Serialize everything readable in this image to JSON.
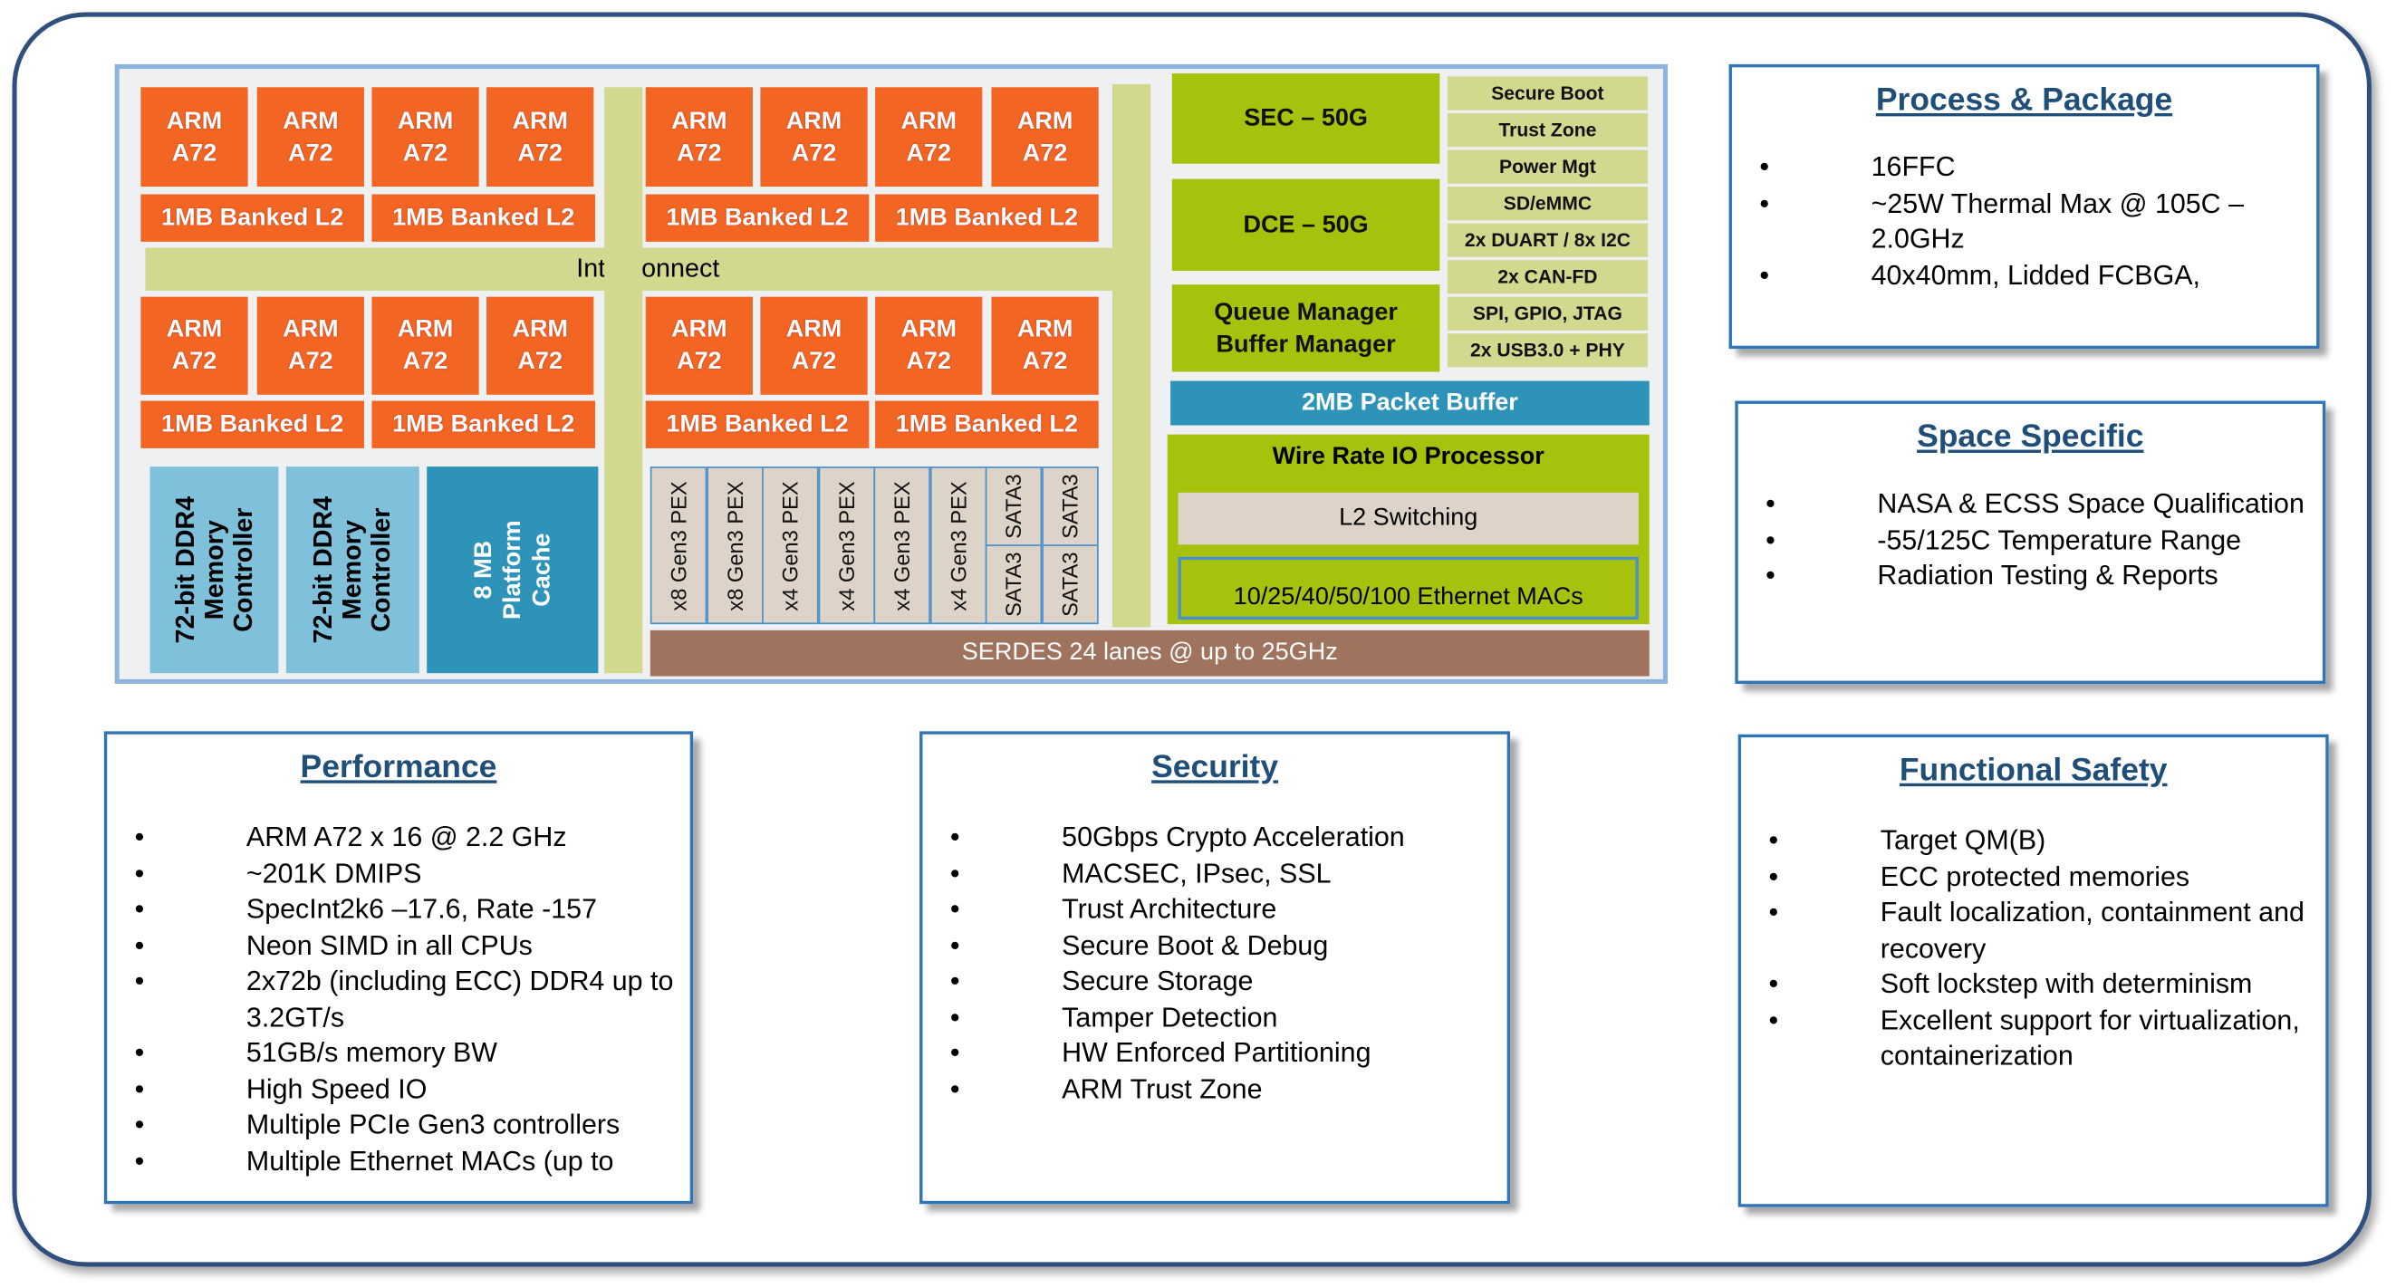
{
  "diagram": {
    "cores": [
      "ARM\nA72",
      "ARM\nA72",
      "ARM\nA72",
      "ARM\nA72"
    ],
    "core_label_line1": "ARM",
    "core_label_line2": "A72",
    "l2_label": "1MB Banked L2",
    "interconnect": "Interconnect",
    "ddr_line1": "72-bit DDR4",
    "ddr_line2": "Memory",
    "ddr_line3": "Controller",
    "cache_line1": "8 MB",
    "cache_line2": "Platform",
    "cache_line3": "Cache",
    "sec": "SEC – 50G",
    "dce": "DCE – 50G",
    "qm_line1": "Queue Manager",
    "qm_line2": "Buffer Manager",
    "peripherals": [
      "Secure Boot",
      "Trust Zone",
      "Power Mgt",
      "SD/eMMC",
      "2x DUART / 8x I2C",
      "2x CAN-FD",
      "SPI, GPIO, JTAG",
      "2x USB3.0 + PHY"
    ],
    "packet_buffer": "2MB Packet Buffer",
    "wire_rate": "Wire Rate IO Processor",
    "l2_switching": "L2 Switching",
    "ethernet_macs": "10/25/40/50/100 Ethernet MACs",
    "pex": [
      "x8 Gen3 PEX",
      "x8 Gen3 PEX",
      "x4 Gen3 PEX",
      "x4 Gen3 PEX",
      "x4 Gen3 PEX",
      "x4 Gen3 PEX"
    ],
    "sata": [
      "SATA3",
      "SATA3",
      "SATA3",
      "SATA3"
    ],
    "serdes": "SERDES 24 lanes @ up to 25GHz",
    "colors": {
      "cpu": "#f26522",
      "interconnect": "#d2d98f",
      "memory": "#7fc1da",
      "cache": "#2e93b8",
      "accel": "#a6c20c",
      "serdes": "#a0735e",
      "io": "#ddd3c8"
    }
  },
  "panels": {
    "process": {
      "title": "Process & Package",
      "items": [
        "16FFC",
        "~25W Thermal Max @ 105C – 2.0GHz",
        "40x40mm, Lidded FCBGA,"
      ]
    },
    "space": {
      "title": "Space Specific",
      "items": [
        "NASA & ECSS Space Qualification",
        "-55/125C Temperature  Range",
        "Radiation Testing & Reports"
      ]
    },
    "performance": {
      "title": "Performance",
      "items": [
        "ARM A72 x 16 @ 2.2 GHz",
        "~201K DMIPS",
        "SpecInt2k6 –17.6, Rate -157",
        "Neon SIMD in all CPUs",
        "2x72b (including ECC) DDR4 up to 3.2GT/s",
        "51GB/s memory BW",
        "High Speed  IO",
        "Multiple PCIe Gen3 controllers",
        "Multiple Ethernet MACs (up to"
      ]
    },
    "security": {
      "title": "Security",
      "items": [
        "50Gbps Crypto Acceleration",
        "MACSEC, IPsec, SSL",
        "Trust Architecture",
        "Secure Boot & Debug",
        "Secure Storage",
        "Tamper Detection",
        "HW Enforced Partitioning",
        "ARM Trust Zone"
      ]
    },
    "safety": {
      "title": "Functional Safety",
      "items": [
        "Target QM(B)",
        "ECC protected memories",
        "Fault localization,  containment and recovery",
        "Soft lockstep with determinism",
        "Excellent support for virtualization,  containerization"
      ]
    },
    "bullet": "•"
  }
}
